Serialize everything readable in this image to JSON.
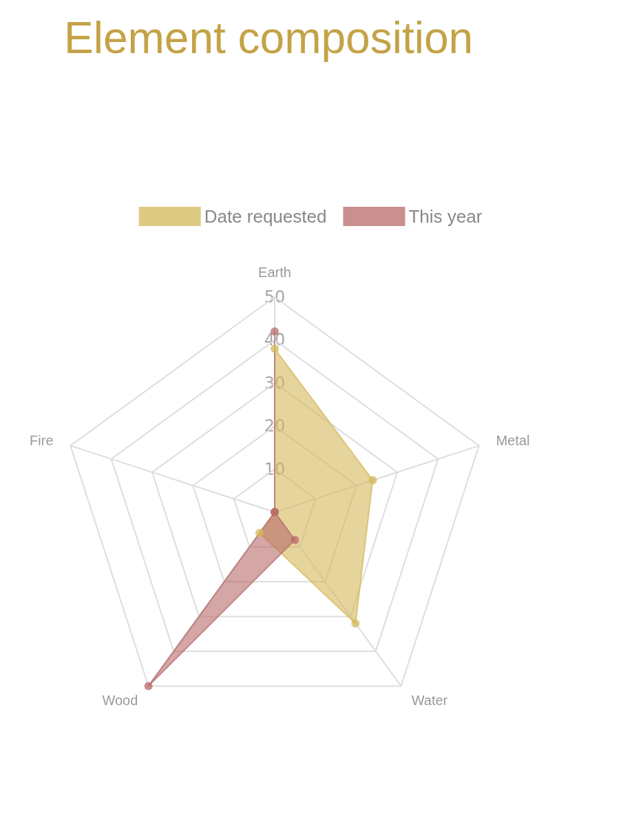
{
  "chart_data": {
    "type": "radar",
    "title": "Element composition",
    "categories": [
      "Earth",
      "Metal",
      "Water",
      "Wood",
      "Fire"
    ],
    "series": [
      {
        "name": "Date requested",
        "color": "#d4b85a",
        "values": [
          38,
          24,
          32,
          6,
          0
        ]
      },
      {
        "name": "This year",
        "color": "#b86a6a",
        "values": [
          42,
          0,
          8,
          50,
          0
        ]
      }
    ],
    "ylim": [
      0,
      50
    ],
    "yticks": [
      10,
      20,
      30,
      40,
      50
    ],
    "grid": true,
    "legend": "top",
    "marker": "circle"
  }
}
